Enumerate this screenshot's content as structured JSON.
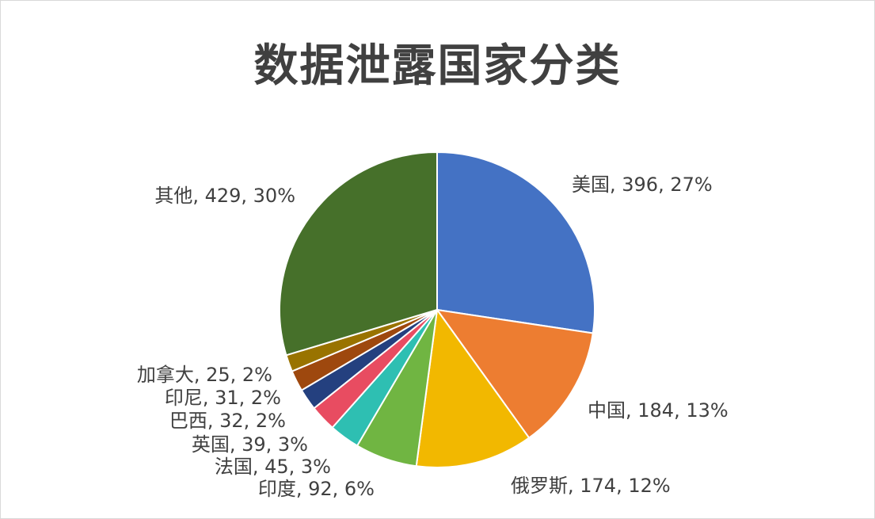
{
  "chart_data": {
    "type": "pie",
    "title": "数据泄露国家分类",
    "slices": [
      {
        "name": "美国",
        "value": 396,
        "percent": "27%",
        "label": "美国, 396, 27%",
        "color": "#4472C4"
      },
      {
        "name": "中国",
        "value": 184,
        "percent": "13%",
        "label": "中国, 184, 13%",
        "color": "#ED7D31"
      },
      {
        "name": "俄罗斯",
        "value": 174,
        "percent": "12%",
        "label": "俄罗斯, 174, 12%",
        "color": "#F2B800"
      },
      {
        "name": "印度",
        "value": 92,
        "percent": "6%",
        "label": "印度, 92, 6%",
        "color": "#70B542"
      },
      {
        "name": "法国",
        "value": 45,
        "percent": "3%",
        "label": "法国, 45, 3%",
        "color": "#2EBFB2"
      },
      {
        "name": "英国",
        "value": 39,
        "percent": "3%",
        "label": "英国, 39, 3%",
        "color": "#E84C61"
      },
      {
        "name": "巴西",
        "value": 32,
        "percent": "2%",
        "label": "巴西, 32, 2%",
        "color": "#24407F"
      },
      {
        "name": "印尼",
        "value": 31,
        "percent": "2%",
        "label": "印尼, 31, 2%",
        "color": "#9E480E"
      },
      {
        "name": "加拿大",
        "value": 25,
        "percent": "2%",
        "label": "加拿大, 25, 2%",
        "color": "#997300"
      },
      {
        "name": "其他",
        "value": 429,
        "percent": "30%",
        "label": "其他, 429, 30%",
        "color": "#46702A"
      }
    ]
  }
}
